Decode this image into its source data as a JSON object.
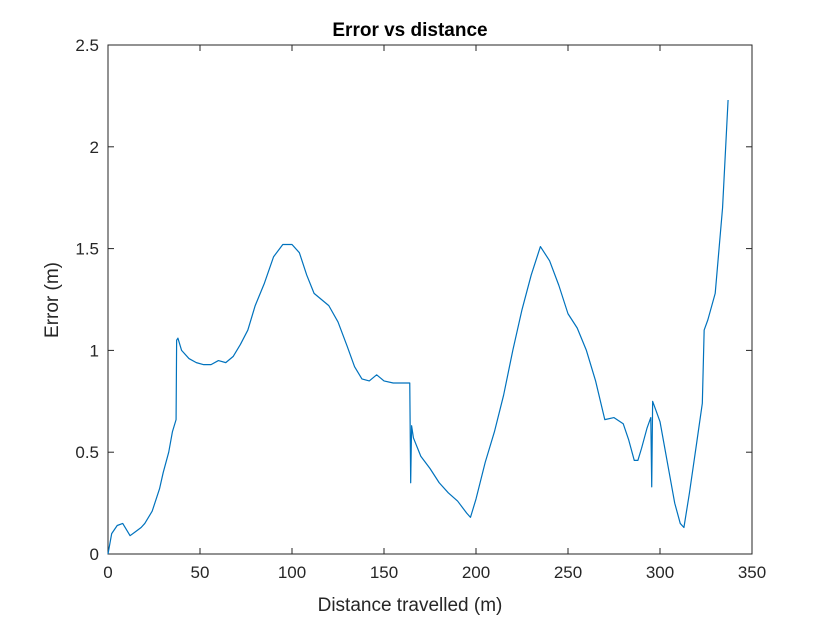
{
  "chart_data": {
    "type": "line",
    "title": "Error vs distance",
    "xlabel": "Distance travelled (m)",
    "ylabel": "Error (m)",
    "xlim": [
      0,
      350
    ],
    "ylim": [
      0,
      2.5
    ],
    "xticks": [
      0,
      50,
      100,
      150,
      200,
      250,
      300,
      350
    ],
    "yticks": [
      0,
      0.5,
      1,
      1.5,
      2,
      2.5
    ],
    "xtick_labels": [
      "0",
      "50",
      "100",
      "150",
      "200",
      "250",
      "300",
      "350"
    ],
    "ytick_labels": [
      "0",
      "0.5",
      "1",
      "1.5",
      "2",
      "2.5"
    ],
    "grid": false,
    "color": "#0072BD",
    "series": [
      {
        "x": [
          0,
          2,
          5,
          8,
          10,
          12,
          15,
          18,
          20,
          24,
          28,
          30,
          33,
          35,
          37,
          37.3,
          38,
          40,
          44,
          48,
          52,
          56,
          60,
          64,
          68,
          72,
          76,
          80,
          85,
          90,
          95,
          100,
          104,
          108,
          112,
          116,
          120,
          125,
          130,
          134,
          138,
          142,
          146,
          150,
          155,
          160,
          164,
          164.5,
          165,
          166,
          170,
          175,
          180,
          185,
          190,
          195,
          197,
          200,
          205,
          210,
          215,
          220,
          225,
          230,
          235,
          240,
          245,
          250,
          255,
          260,
          265,
          270,
          275,
          280,
          283,
          286,
          288,
          290,
          293,
          295,
          295.5,
          296,
          298,
          300,
          302,
          305,
          308,
          311,
          313,
          316,
          320,
          323,
          324,
          326,
          330,
          334,
          337
        ],
        "y": [
          0,
          0.1,
          0.14,
          0.15,
          0.12,
          0.09,
          0.11,
          0.13,
          0.15,
          0.21,
          0.32,
          0.4,
          0.5,
          0.6,
          0.66,
          1.05,
          1.06,
          1.0,
          0.96,
          0.94,
          0.93,
          0.93,
          0.95,
          0.94,
          0.97,
          1.03,
          1.1,
          1.22,
          1.33,
          1.46,
          1.52,
          1.52,
          1.48,
          1.37,
          1.28,
          1.25,
          1.22,
          1.14,
          1.02,
          0.92,
          0.86,
          0.85,
          0.88,
          0.85,
          0.84,
          0.84,
          0.84,
          0.35,
          0.63,
          0.57,
          0.48,
          0.42,
          0.35,
          0.3,
          0.26,
          0.2,
          0.18,
          0.27,
          0.45,
          0.6,
          0.78,
          1.0,
          1.2,
          1.37,
          1.51,
          1.44,
          1.32,
          1.18,
          1.11,
          1.0,
          0.85,
          0.66,
          0.67,
          0.64,
          0.56,
          0.46,
          0.46,
          0.52,
          0.62,
          0.67,
          0.33,
          0.75,
          0.7,
          0.65,
          0.55,
          0.4,
          0.25,
          0.15,
          0.13,
          0.3,
          0.55,
          0.74,
          1.1,
          1.15,
          1.28,
          1.7,
          2.23
        ]
      }
    ]
  }
}
